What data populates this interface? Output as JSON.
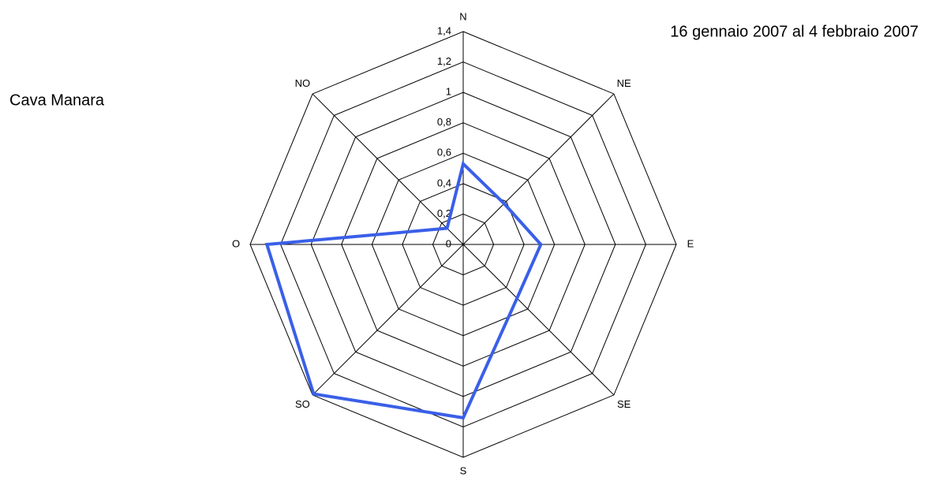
{
  "chart_data": {
    "type": "radar",
    "title": "Cava Manara",
    "subtitle": "16 gennaio 2007 al 4 febbraio 2007",
    "categories": [
      "N",
      "NE",
      "E",
      "SE",
      "S",
      "SO",
      "O",
      "NO"
    ],
    "series": [
      {
        "color": "#3a5fe8",
        "values": [
          0.53,
          0.38,
          0.51,
          0.5,
          1.14,
          1.39,
          1.29,
          0.15
        ]
      }
    ],
    "ylim": [
      0,
      1.4
    ],
    "yticks": [
      0,
      {
        "value": 0.2,
        "label": "0,2"
      },
      {
        "value": 0.4,
        "label": "0,4"
      },
      {
        "value": 0.6,
        "label": "0,6"
      },
      {
        "value": 0.8,
        "label": "0,8"
      },
      1,
      {
        "value": 1.2,
        "label": "1,2"
      },
      {
        "value": 1.4,
        "label": "1,4"
      }
    ],
    "grid": true
  }
}
